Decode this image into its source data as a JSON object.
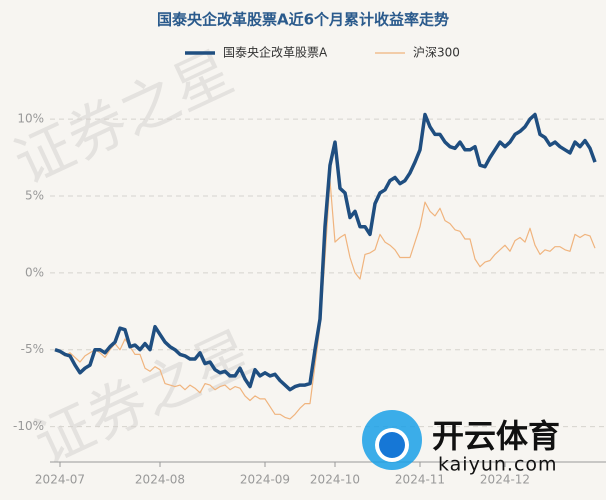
{
  "chart_data": {
    "type": "line",
    "title": "国泰央企改革股票A近6个月累计收益率走势",
    "watermark": "证券之星",
    "logo_text": "开云体育",
    "logo_url": "kaiyun.com",
    "categories": [
      null,
      "2024-07",
      null,
      null,
      null,
      null,
      null,
      null,
      null,
      null,
      null,
      null,
      null,
      null,
      null,
      null,
      null,
      null,
      null,
      null,
      null,
      "2024-08",
      null,
      null,
      null,
      null,
      null,
      null,
      null,
      null,
      null,
      null,
      null,
      null,
      null,
      null,
      null,
      null,
      null,
      null,
      null,
      null,
      "2024-09",
      null,
      null,
      null,
      null,
      null,
      null,
      null,
      null,
      null,
      null,
      null,
      null,
      null,
      "2024-10",
      null,
      null,
      null,
      null,
      null,
      null,
      null,
      null,
      null,
      null,
      null,
      null,
      null,
      null,
      null,
      null,
      "2024-11",
      null,
      null,
      null,
      null,
      null,
      null,
      null,
      null,
      null,
      null,
      null,
      null,
      null,
      null,
      null,
      null,
      "2024-12",
      null,
      null,
      null,
      null,
      null,
      null,
      null,
      null,
      null,
      null,
      null,
      null,
      null,
      null,
      null,
      null,
      null,
      null
    ],
    "series": [
      {
        "name": "国泰央企改革股票A",
        "color": "#1f4e80",
        "width": 3.5,
        "values": [
          -5,
          -5.1,
          -5.3,
          -5.4,
          -6,
          -6.5,
          -6.2,
          -6,
          -5,
          -5,
          -5.2,
          -4.8,
          -4.5,
          -3.6,
          -3.7,
          -4.8,
          -4.7,
          -5,
          -4.6,
          -5,
          -3.5,
          -4,
          -4.5,
          -4.8,
          -5,
          -5.3,
          -5.4,
          -5.6,
          -5.6,
          -5.2,
          -5.9,
          -5.8,
          -6.3,
          -6.5,
          -6.4,
          -6.7,
          -6.7,
          -6.2,
          -6.9,
          -7.4,
          -6.3,
          -6.7,
          -6.5,
          -6.7,
          -6.6,
          -7,
          -7.3,
          -7.6,
          -7.4,
          -7.3,
          -7.3,
          -7.2,
          -5,
          -3,
          3,
          7,
          8.5,
          5.5,
          5.2,
          3.6,
          4,
          3,
          3,
          2.5,
          4.5,
          5.2,
          5.4,
          6,
          6.2,
          5.8,
          6,
          6.5,
          7.2,
          8,
          10.3,
          9.5,
          9,
          9,
          8.5,
          8.2,
          8.1,
          8.5,
          8,
          8,
          8.2,
          7,
          6.9,
          7.5,
          8,
          8.5,
          8.2,
          8.5,
          9,
          9.2,
          9.5,
          10,
          10.3,
          9,
          8.8,
          8.3,
          8.5,
          8.2,
          8,
          7.8,
          8.5,
          8.2,
          8.6,
          8.1,
          7.2
        ]
      },
      {
        "name": "沪深300",
        "color": "#f0b47e",
        "width": 1.2,
        "values": [
          -5,
          -5.2,
          -5.4,
          -5.2,
          -5.5,
          -5.8,
          -5.4,
          -5.2,
          -5,
          -5.2,
          -5.5,
          -5,
          -4.6,
          -5,
          -4.3,
          -4.8,
          -5.3,
          -5.3,
          -6.2,
          -6.4,
          -6.1,
          -6.3,
          -7.2,
          -7.3,
          -7.4,
          -7.3,
          -7.6,
          -7.3,
          -7.5,
          -7.8,
          -7.2,
          -7.3,
          -7.6,
          -7.4,
          -7.3,
          -7.6,
          -7.4,
          -7.5,
          -8,
          -8.3,
          -8,
          -8.2,
          -8.2,
          -8.7,
          -9.2,
          -9.2,
          -9.4,
          -9.5,
          -9.2,
          -8.8,
          -8.5,
          -8.5,
          -6,
          -3.5,
          1,
          6,
          2,
          2.3,
          2.5,
          1,
          0,
          -0.4,
          1.2,
          1.3,
          1.5,
          2.5,
          2,
          1.8,
          1.5,
          1,
          1,
          1,
          2,
          3,
          4.6,
          4,
          3.7,
          4.2,
          3.4,
          3.2,
          2.8,
          2.7,
          2.2,
          2.2,
          0.9,
          0.4,
          0.7,
          0.8,
          1.2,
          1.5,
          1.8,
          1.4,
          2.1,
          2.3,
          2,
          2.9,
          1.8,
          1.2,
          1.5,
          1.4,
          1.7,
          1.7,
          1.5,
          1.4,
          2.5,
          2.3,
          2.5,
          2.4,
          1.6
        ]
      }
    ],
    "ylim": [
      -12.3,
      11.5
    ],
    "yticks": [
      {
        "value": 10,
        "label": "10%"
      },
      {
        "value": 5,
        "label": "5%"
      },
      {
        "value": 0,
        "label": "0%"
      },
      {
        "value": -5,
        "label": "-5%"
      },
      {
        "value": -10,
        "label": "-10%"
      }
    ],
    "grid": true
  }
}
